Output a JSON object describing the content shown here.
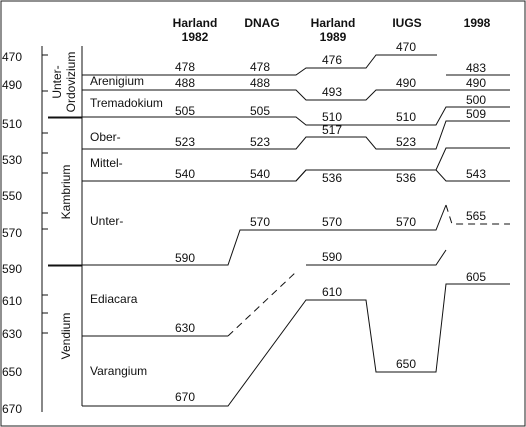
{
  "columns": [
    {
      "id": "harland1982",
      "line1": "Harland",
      "line2": "1982"
    },
    {
      "id": "dnag",
      "line1": "DNAG",
      "line2": ""
    },
    {
      "id": "harland1989",
      "line1": "Harland",
      "line2": "1989"
    },
    {
      "id": "iugs",
      "line1": "IUGS",
      "line2": ""
    },
    {
      "id": "y1998",
      "line1": "1998",
      "line2": ""
    }
  ],
  "axis_ticks": [
    "470",
    "490",
    "510",
    "530",
    "550",
    "570",
    "590",
    "610",
    "630",
    "650",
    "670"
  ],
  "systems": [
    {
      "id": "ordovizium",
      "line1": "Unter-",
      "line2": "Ordovizium"
    },
    {
      "id": "kambrium",
      "line1": "Kambrium",
      "line2": ""
    },
    {
      "id": "vendium",
      "line1": "Vendium",
      "line2": ""
    }
  ],
  "stages": [
    {
      "id": "arenigium",
      "label": "Arenigium"
    },
    {
      "id": "tremadokium",
      "label": "Tremadokium"
    },
    {
      "id": "ober",
      "label": "Ober-"
    },
    {
      "id": "mittel",
      "label": "Mittel-"
    },
    {
      "id": "unter",
      "label": "Unter-"
    },
    {
      "id": "ediacara",
      "label": "Ediacara"
    },
    {
      "id": "varangium",
      "label": "Varangium"
    }
  ],
  "value_labels": {
    "harland1982": [
      "478",
      "488",
      "505",
      "523",
      "540",
      "590",
      "630",
      "670"
    ],
    "dnag": [
      "478",
      "488",
      "505",
      "523",
      "540",
      "570"
    ],
    "harland1989": [
      "476",
      "493",
      "510",
      "517",
      "536",
      "570",
      "590",
      "610"
    ],
    "iugs": [
      "470",
      "490",
      "510",
      "523",
      "536",
      "570",
      "650"
    ],
    "y1998": [
      "483",
      "490",
      "500",
      "509",
      "543",
      "565",
      "605"
    ]
  }
}
